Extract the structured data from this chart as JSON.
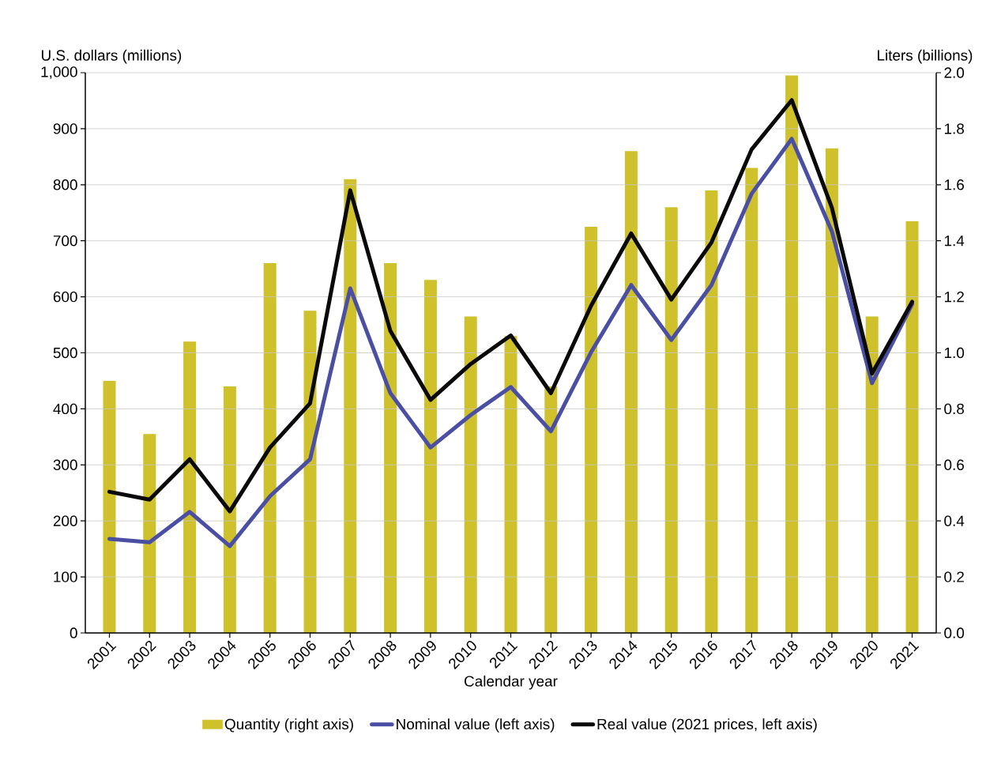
{
  "chart_data": {
    "type": "bar",
    "xlabel": "Calendar year",
    "ylabel": "U.S. dollars (millions)",
    "y2label": "Liters (billions)",
    "categories": [
      "2001",
      "2002",
      "2003",
      "2004",
      "2005",
      "2006",
      "2007",
      "2008",
      "2009",
      "2010",
      "2011",
      "2012",
      "2013",
      "2014",
      "2015",
      "2016",
      "2017",
      "2018",
      "2019",
      "2020",
      "2021"
    ],
    "series": [
      {
        "name": "Quantity (right axis)",
        "axis": "y2",
        "color": "#cfc12b",
        "values": [
          0.9,
          0.71,
          1.04,
          0.88,
          1.32,
          1.15,
          1.62,
          1.32,
          1.26,
          1.13,
          1.06,
          0.88,
          1.45,
          1.72,
          1.52,
          1.58,
          1.66,
          1.99,
          1.73,
          1.13,
          1.47
        ]
      },
      {
        "name": "Nominal value (left axis)",
        "type": "line",
        "axis": "y",
        "color": "#4b4fa3",
        "values": [
          168,
          162,
          216,
          155,
          244,
          310,
          615,
          428,
          331,
          389,
          439,
          360,
          501,
          621,
          523,
          621,
          784,
          882,
          717,
          446,
          587
        ]
      },
      {
        "name": "Real value (2021 prices, left axis)",
        "type": "line",
        "axis": "y",
        "color": "#0a0a0a",
        "values": [
          252,
          238,
          310,
          217,
          331,
          410,
          790,
          539,
          416,
          480,
          531,
          428,
          584,
          713,
          595,
          697,
          863,
          951,
          759,
          463,
          591
        ]
      }
    ],
    "ylim": [
      0,
      1000
    ],
    "yticks": [
      0,
      100,
      200,
      300,
      400,
      500,
      600,
      700,
      800,
      900,
      {
        "value": 1000,
        "label": "1,000"
      }
    ],
    "y2lim": [
      0,
      2.0
    ],
    "y2ticks": [
      {
        "value": 0,
        "label": "0.0"
      },
      {
        "value": 0.2,
        "label": "0.2"
      },
      {
        "value": 0.4,
        "label": "0.4"
      },
      {
        "value": 0.6,
        "label": "0.6"
      },
      {
        "value": 0.8,
        "label": "0.8"
      },
      {
        "value": 1.0,
        "label": "1.0"
      },
      {
        "value": 1.2,
        "label": "1.2"
      },
      {
        "value": 1.4,
        "label": "1.4"
      },
      {
        "value": 1.6,
        "label": "1.6"
      },
      {
        "value": 1.8,
        "label": "1.8"
      },
      {
        "value": 2.0,
        "label": "2.0"
      }
    ],
    "grid": "y",
    "legend": "bottom",
    "marker": "none",
    "line_style": "solid"
  }
}
